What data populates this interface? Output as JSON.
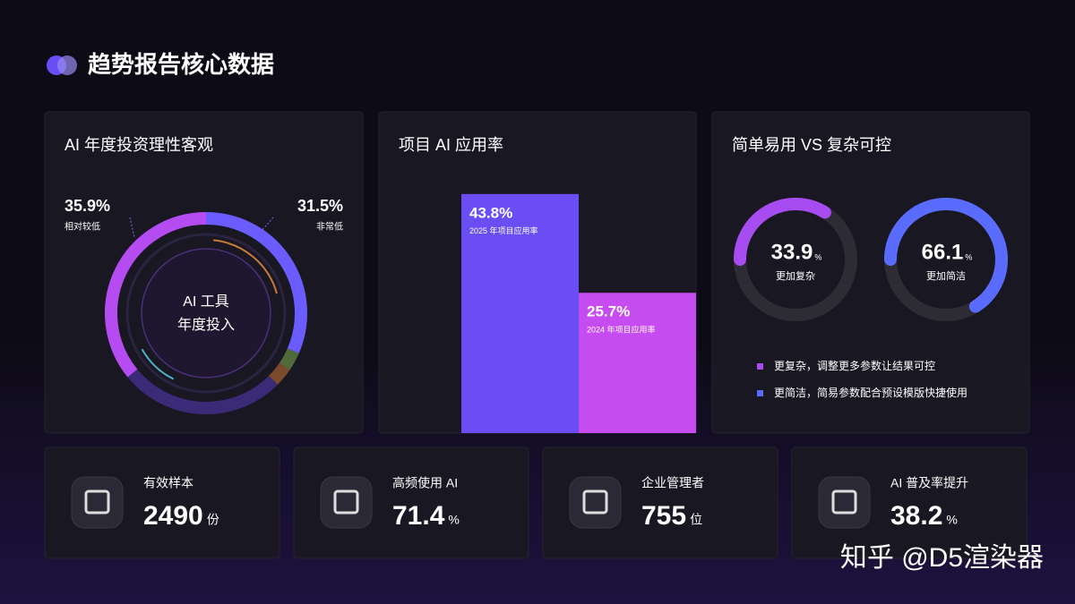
{
  "title": "趋势报告核心数据",
  "chart_data": [
    {
      "type": "donut",
      "title": "AI 年度投资理性客观",
      "center_label": [
        "AI 工具",
        "年度投入"
      ],
      "categories": [
        "非常低",
        null,
        null,
        null,
        "相对较低"
      ],
      "values": [
        31.5,
        3,
        3,
        26.6,
        35.9
      ],
      "value_labels": [
        "31.5%",
        null,
        null,
        null,
        "35.9%"
      ],
      "colors": [
        "#6a5cff",
        "#4f6b3c",
        "#7a4a2a",
        "#3b2a78",
        "#b54cf2"
      ]
    },
    {
      "type": "bar",
      "title": "项目 AI 应用率",
      "categories": [
        "2025 年项目应用率",
        "2024 年项目应用率"
      ],
      "values": [
        43.8,
        25.7
      ],
      "value_labels": [
        "43.8%",
        "25.7%"
      ],
      "colors": [
        "#6a4df5",
        "#c64bf0"
      ],
      "ylim": [
        0,
        50
      ]
    },
    {
      "type": "gauge",
      "title": "简单易用 VS 复杂可控",
      "series": [
        {
          "name": "更加复杂",
          "value": 33.9,
          "unit": "%",
          "color": "#a64cf0"
        },
        {
          "name": "更加简洁",
          "value": 66.1,
          "unit": "%",
          "color": "#5a6cff"
        }
      ],
      "ylim": [
        0,
        100
      ],
      "legend": [
        "更复杂，调整更多参数让结果可控",
        "更简洁，简易参数配合预设模版快捷使用"
      ]
    }
  ],
  "stats": [
    {
      "label": "有效样本",
      "value": 2490,
      "unit": "份"
    },
    {
      "label": "高频使用 AI",
      "value": 71.4,
      "unit": "%"
    },
    {
      "label": "企业管理者",
      "value": 755,
      "unit": "位"
    },
    {
      "label": "AI 普及率提升",
      "value": 38.2,
      "unit": "%"
    }
  ],
  "watermark": "知乎 @D5渲染器"
}
